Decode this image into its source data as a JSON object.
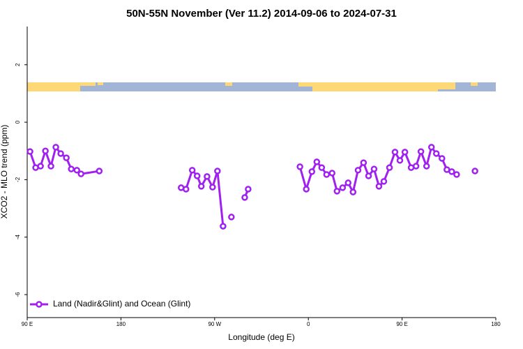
{
  "chart_data": {
    "type": "line",
    "title": "50N-55N November (Ver 11.2)   2014-09-06 to 2024-07-31",
    "x_label": "Longitude (deg E)",
    "y_label": "XCO2 - MLO trend (ppm)",
    "xlim": [
      90,
      540
    ],
    "ylim": [
      -6.8,
      3.33
    ],
    "xticks": [
      {
        "value": 90,
        "label": "90 E"
      },
      180,
      {
        "value": 270,
        "label": "90 W"
      },
      {
        "value": 360,
        "label": "0"
      },
      {
        "value": 450,
        "label": "90 E"
      },
      {
        "value": 540,
        "label": "180"
      }
    ],
    "yticks": [
      -6,
      -4,
      -2,
      0,
      2
    ],
    "legend": "bottom-left",
    "series": [
      {
        "name": "Land (Nadir&Glint) and Ocean (Glint)",
        "color": "#a020f0",
        "x": [
          92.7,
          98.1,
          102.8,
          107.5,
          112.8,
          117.5,
          122.2,
          127.6,
          132.3,
          137.7,
          141.7,
          159.2,
          null,
          237.8,
          242.5,
          248.5,
          253.2,
          257.2,
          262.7,
          268.0,
          272.7,
          278.1,
          null,
          286.1,
          null,
          298.9,
          302.2,
          null,
          351.9,
          358.0,
          363.4,
          368.1,
          372.8,
          377.5,
          382.8,
          387.5,
          392.9,
          398.2,
          402.9,
          407.7,
          413.0,
          417.8,
          423.1,
          427.8,
          432.5,
          437.9,
          443.2,
          447.9,
          452.7,
          458.7,
          463.4,
          468.1,
          473.5,
          478.2,
          482.9,
          488.3,
          493.0,
          497.7,
          502.4,
          null,
          520.0
        ],
        "values": [
          -1.02,
          -1.58,
          -1.53,
          -1.0,
          -1.53,
          -0.87,
          -1.09,
          -1.24,
          -1.63,
          -1.67,
          -1.8,
          -1.7,
          null,
          -2.28,
          -2.33,
          -1.67,
          -1.87,
          -2.23,
          -1.89,
          -2.26,
          -1.7,
          -3.62,
          null,
          -3.3,
          null,
          -2.62,
          -2.33,
          null,
          -1.55,
          -2.33,
          -1.72,
          -1.38,
          -1.58,
          -1.82,
          -1.77,
          -2.4,
          -2.28,
          -2.11,
          -2.43,
          -1.67,
          -1.41,
          -1.87,
          -1.63,
          -2.23,
          -2.06,
          -1.58,
          -1.04,
          -1.33,
          -1.04,
          -1.58,
          -1.53,
          -1.02,
          -1.53,
          -0.87,
          -1.09,
          -1.26,
          -1.65,
          -1.72,
          -1.82,
          null,
          -1.7
        ]
      }
    ]
  }
}
